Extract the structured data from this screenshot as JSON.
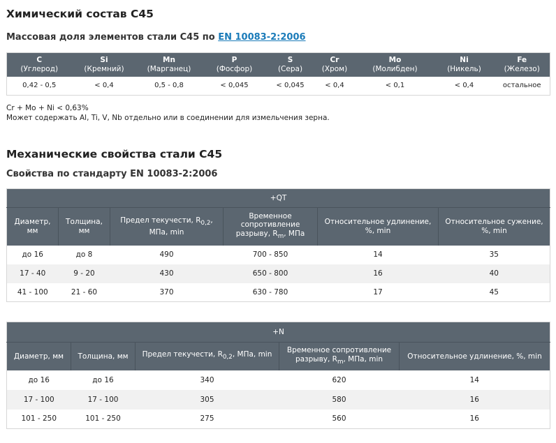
{
  "chem_section": {
    "title": "Химический состав С45",
    "subtitle_prefix": "Массовая доля элементов стали С45 по ",
    "subtitle_link": "EN 10083-2:2006",
    "table": {
      "headers": [
        {
          "symbol": "C",
          "name": "(Углерод)"
        },
        {
          "symbol": "Si",
          "name": "(Кремний)"
        },
        {
          "symbol": "Mn",
          "name": "(Марганец)"
        },
        {
          "symbol": "P",
          "name": "(Фосфор)"
        },
        {
          "symbol": "S",
          "name": "(Сера)"
        },
        {
          "symbol": "Cr",
          "name": "(Хром)"
        },
        {
          "symbol": "Mo",
          "name": "(Молибден)"
        },
        {
          "symbol": "Ni",
          "name": "(Никель)"
        },
        {
          "symbol": "Fe",
          "name": "(Железо)"
        }
      ],
      "row": [
        "0,42 - 0,5",
        "< 0,4",
        "0,5 - 0,8",
        "< 0,045",
        "< 0,045",
        "< 0,4",
        "< 0,1",
        "< 0,4",
        "остальное"
      ]
    },
    "notes": [
      "Cr + Mo + Ni < 0,63%",
      "Может содержать Al, Ti, V, Nb отдельно или в соединении для измельчения зерна."
    ]
  },
  "mech_section": {
    "title": "Механические свойства стали С45",
    "subtitle": "Свойства по стандарту EN 10083-2:2006"
  },
  "qt_table": {
    "group": "+QT",
    "headers": {
      "diameter": "Диаметр, мм",
      "thickness": "Толщина, мм",
      "yield_a": "Предел текучести, R",
      "yield_sub": "0,2",
      "yield_b": ", МПа, min",
      "tensile_a": "Временное сопротивление разрыву, R",
      "tensile_sub": "m",
      "tensile_b": ", МПа",
      "elongation": "Относительное удлинение, %, min",
      "reduction": "Относительное сужение, %, min"
    },
    "rows": [
      [
        "до 16",
        "до 8",
        "490",
        "700 - 850",
        "14",
        "35"
      ],
      [
        "17 - 40",
        "9 - 20",
        "430",
        "650 - 800",
        "16",
        "40"
      ],
      [
        "41 - 100",
        "21 - 60",
        "370",
        "630 - 780",
        "17",
        "45"
      ]
    ]
  },
  "n_table": {
    "group": "+N",
    "headers": {
      "diameter": "Диаметр, мм",
      "thickness": "Толщина, мм",
      "yield_a": "Предел текучести, R",
      "yield_sub": "0,2",
      "yield_b": ", МПа, min",
      "tensile_a": "Временное сопротивление разрыву, R",
      "tensile_sub": "m",
      "tensile_b": ", МПа, min",
      "elongation": "Относительное удлинение, %, min"
    },
    "rows": [
      [
        "до 16",
        "до 16",
        "340",
        "620",
        "14"
      ],
      [
        "17 - 100",
        "17 - 100",
        "305",
        "580",
        "16"
      ],
      [
        "101 - 250",
        "101 - 250",
        "275",
        "560",
        "16"
      ]
    ]
  }
}
